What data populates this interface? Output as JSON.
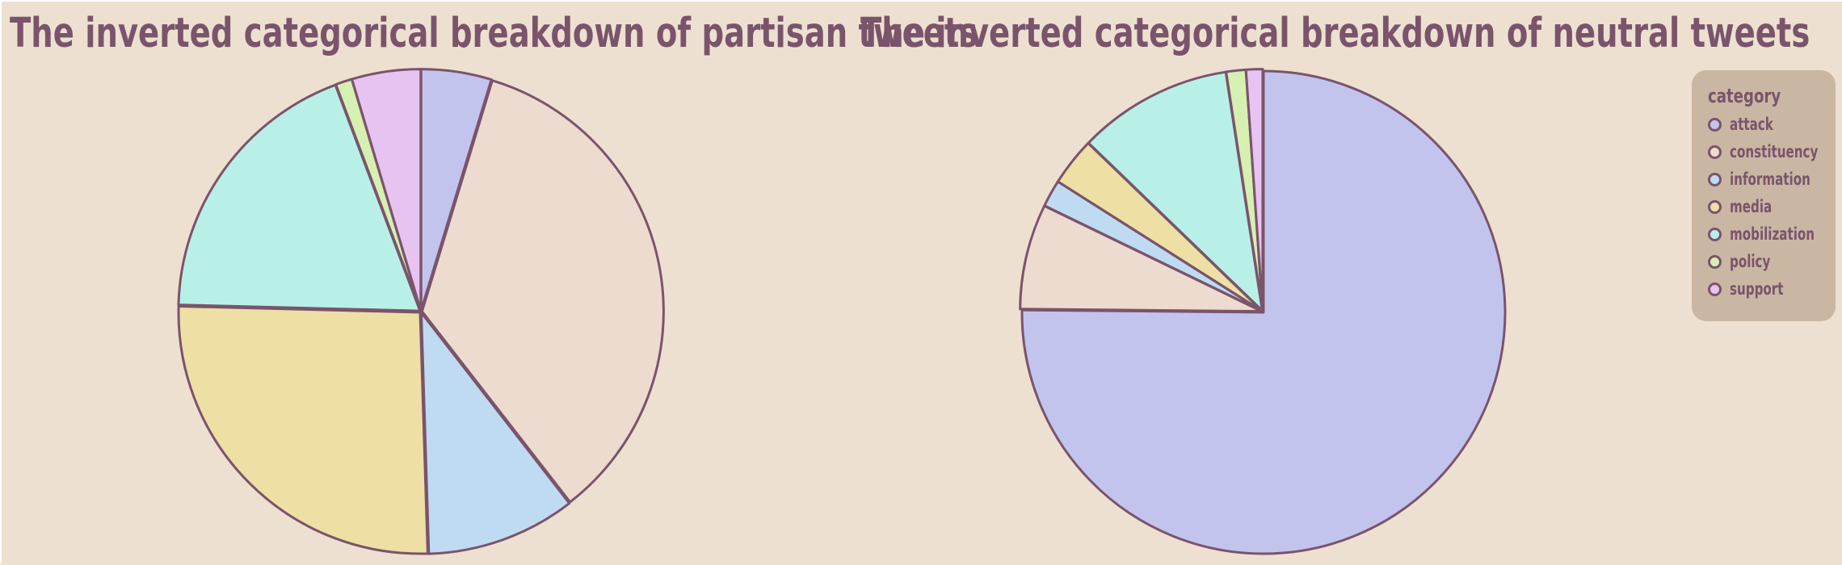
{
  "colors": {
    "background": "#ede0d1",
    "text": "#7a546b",
    "outline": "#7a546b",
    "legend_bg": "#c9b7a4"
  },
  "legend": {
    "title": "category",
    "items": [
      {
        "label": "attack",
        "color": "#c3c4ee"
      },
      {
        "label": "constituency",
        "color": "#eddbd0"
      },
      {
        "label": "information",
        "color": "#bfdbf2"
      },
      {
        "label": "media",
        "color": "#eedfa5"
      },
      {
        "label": "mobilization",
        "color": "#b8f0e7"
      },
      {
        "label": "policy",
        "color": "#d5f0b0"
      },
      {
        "label": "support",
        "color": "#e6c3f0"
      }
    ]
  },
  "chart_data": [
    {
      "type": "pie",
      "title": "The inverted categorical breakdown of partisan tweets",
      "categories": [
        "attack",
        "constituency",
        "information",
        "media",
        "mobilization",
        "policy",
        "support"
      ],
      "values": [
        4.7,
        34.8,
        10.0,
        25.9,
        18.9,
        1.1,
        4.6
      ],
      "colors": [
        "#c3c4ee",
        "#eddbd0",
        "#bfdbf2",
        "#eedfa5",
        "#b8f0e7",
        "#d5f0b0",
        "#e6c3f0"
      ],
      "legend_position": "right"
    },
    {
      "type": "pie",
      "title": "The inverted categorical breakdown of neutral tweets",
      "categories": [
        "attack",
        "constituency",
        "information",
        "media",
        "mobilization",
        "policy",
        "support"
      ],
      "values": [
        74.7,
        7.0,
        1.8,
        3.2,
        10.3,
        1.3,
        1.1
      ],
      "colors": [
        "#c3c4ee",
        "#eddbd0",
        "#bfdbf2",
        "#eedfa5",
        "#b8f0e7",
        "#d5f0b0",
        "#e6c3f0"
      ],
      "legend_position": "right"
    }
  ]
}
